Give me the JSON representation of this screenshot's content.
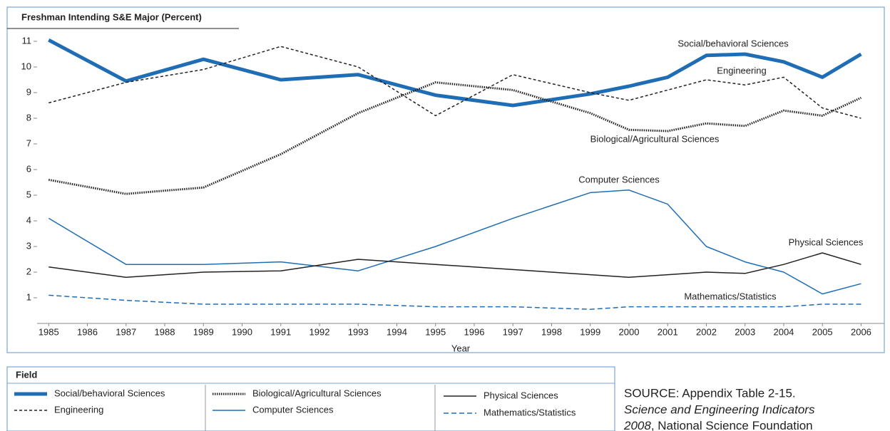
{
  "chart_data": {
    "type": "line",
    "title": "Freshman Intending S&E Major (Percent)",
    "x_label": "Year",
    "x": [
      1985,
      1987,
      1989,
      1991,
      1993,
      1995,
      1997,
      1999,
      2000,
      2001,
      2002,
      2003,
      2004,
      2005,
      2006
    ],
    "xlim": [
      1984.7,
      2006.6
    ],
    "xticks": [
      1985,
      1986,
      1987,
      1988,
      1989,
      1990,
      1991,
      1992,
      1993,
      1994,
      1995,
      1996,
      1997,
      1998,
      1999,
      2000,
      2001,
      2002,
      2003,
      2004,
      2005,
      2006
    ],
    "ylim": [
      0,
      11.5
    ],
    "yticks": [
      1,
      2,
      3,
      4,
      5,
      6,
      7,
      8,
      9,
      10,
      11
    ],
    "series": [
      {
        "name": "Social/behavioral Sciences",
        "color": "#1f6db5",
        "style": "thick",
        "values": [
          11.05,
          9.45,
          10.3,
          9.5,
          9.7,
          8.9,
          8.5,
          8.95,
          9.25,
          9.6,
          10.45,
          10.5,
          10.2,
          9.6,
          10.5
        ]
      },
      {
        "name": "Engineering",
        "color": "#222222",
        "style": "dashed",
        "values": [
          8.6,
          9.4,
          9.9,
          10.8,
          10.0,
          8.1,
          9.7,
          9.0,
          8.7,
          9.1,
          9.5,
          9.3,
          9.6,
          8.4,
          8.0
        ]
      },
      {
        "name": "Biological/Agricultural Sciences",
        "color": "#222222",
        "style": "dotted",
        "values": [
          5.6,
          5.05,
          5.3,
          6.6,
          8.2,
          9.4,
          9.1,
          8.2,
          7.55,
          7.5,
          7.8,
          7.7,
          8.3,
          8.1,
          8.8
        ]
      },
      {
        "name": "Computer Sciences",
        "color": "#1f6db5",
        "style": "solid",
        "values": [
          4.1,
          2.3,
          2.3,
          2.4,
          2.05,
          3.0,
          4.1,
          5.1,
          5.2,
          4.65,
          3.0,
          2.4,
          2.0,
          1.15,
          1.55
        ]
      },
      {
        "name": "Physical Sciences",
        "color": "#222222",
        "style": "solid",
        "values": [
          2.2,
          1.8,
          2.0,
          2.05,
          2.5,
          2.3,
          2.1,
          1.9,
          1.8,
          1.9,
          2.0,
          1.95,
          2.3,
          2.75,
          2.3
        ]
      },
      {
        "name": "Mathematics/Statistics",
        "color": "#1f6db5",
        "style": "longdash",
        "values": [
          1.1,
          0.9,
          0.75,
          0.75,
          0.75,
          0.65,
          0.65,
          0.55,
          0.65,
          0.65,
          0.65,
          0.65,
          0.65,
          0.75,
          0.75
        ]
      }
    ],
    "annotations": [
      "Social/behavioral Sciences",
      "Engineering",
      "Biological/Agricultural Sciences",
      "Computer Sciences",
      "Physical Sciences",
      "Mathematics/Statistics"
    ],
    "legend_title": "Field",
    "source": {
      "line1": "SOURCE: Appendix Table 2-15.",
      "line2": "Science and Engineering Indicators",
      "line3_italic": "2008",
      "line3_rest": ", National Science Foundation"
    }
  }
}
